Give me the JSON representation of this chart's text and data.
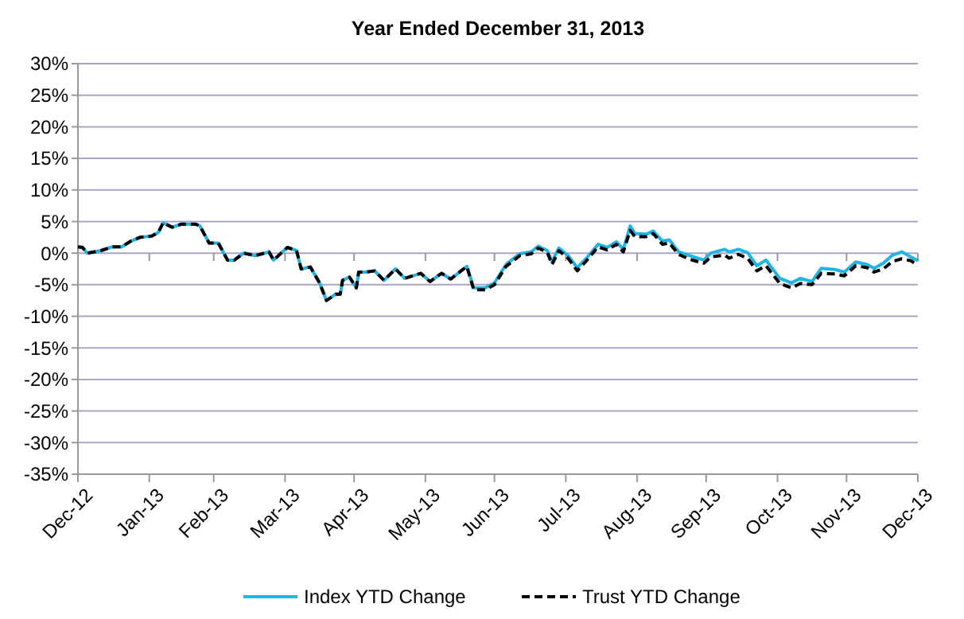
{
  "chart_data": {
    "type": "line",
    "title": "Year Ended December 31, 2013",
    "x": [
      "2012-12-31",
      "2013-01-02",
      "2013-01-04",
      "2013-01-10",
      "2013-01-15",
      "2013-01-19",
      "2013-01-23",
      "2013-01-27",
      "2013-02-01",
      "2013-02-04",
      "2013-02-06",
      "2013-02-10",
      "2013-02-14",
      "2013-02-20",
      "2013-02-22",
      "2013-02-26",
      "2013-03-02",
      "2013-03-06",
      "2013-03-09",
      "2013-03-13",
      "2013-03-18",
      "2013-03-24",
      "2013-03-26",
      "2013-04-01",
      "2013-04-05",
      "2013-04-07",
      "2013-04-11",
      "2013-04-15",
      "2013-04-18",
      "2013-04-22",
      "2013-04-24",
      "2013-04-25",
      "2013-04-28",
      "2013-05-01",
      "2013-05-02",
      "2013-05-05",
      "2013-05-09",
      "2013-05-13",
      "2013-05-18",
      "2013-05-22",
      "2013-05-29",
      "2013-06-02",
      "2013-06-07",
      "2013-06-11",
      "2013-06-18",
      "2013-06-21",
      "2013-06-26",
      "2013-06-30",
      "2013-07-05",
      "2013-07-11",
      "2013-07-16",
      "2013-07-19",
      "2013-07-23",
      "2013-07-25",
      "2013-07-28",
      "2013-08-01",
      "2013-08-05",
      "2013-08-09",
      "2013-08-14",
      "2013-08-18",
      "2013-08-22",
      "2013-08-25",
      "2013-08-28",
      "2013-08-30",
      "2013-09-04",
      "2013-09-07",
      "2013-09-11",
      "2013-09-14",
      "2013-09-18",
      "2013-09-23",
      "2013-09-29",
      "2013-10-02",
      "2013-10-08",
      "2013-10-10",
      "2013-10-14",
      "2013-10-18",
      "2013-10-22",
      "2013-10-26",
      "2013-11-01",
      "2013-11-06",
      "2013-11-10",
      "2013-11-15",
      "2013-11-19",
      "2013-11-25",
      "2013-11-29",
      "2013-12-04",
      "2013-12-09",
      "2013-12-12",
      "2013-12-16",
      "2013-12-20",
      "2013-12-24",
      "2013-12-28",
      "2013-12-31"
    ],
    "series": [
      {
        "name": "Index YTD Change",
        "color": "#1fb4e6",
        "line_style": "solid",
        "values": [
          1.0,
          0.9,
          0,
          0.4,
          1,
          1,
          1.9,
          2.5,
          2.7,
          3.3,
          4.8,
          4.1,
          4.6,
          4.6,
          4.3,
          1.6,
          1.6,
          -1.1,
          -1.1,
          0,
          -0.4,
          0.2,
          -1.1,
          0.9,
          0.4,
          -2.5,
          -2.2,
          -4.7,
          -7.5,
          -6.5,
          -6.5,
          -4.3,
          -3.8,
          -5.5,
          -3,
          -3,
          -2.8,
          -4.3,
          -2.5,
          -4,
          -3.2,
          -4.5,
          -3.2,
          -4.1,
          -2.1,
          -5.5,
          -5.5,
          -4.7,
          -1.8,
          -0.1,
          0.2,
          1.1,
          0.4,
          -1.3,
          0.8,
          -0.4,
          -2.3,
          -0.8,
          1.4,
          0.9,
          1.8,
          0.6,
          4.3,
          3.1,
          3.0,
          3.5,
          1.9,
          2.1,
          0.2,
          -0.4,
          -1.1,
          0,
          0.6,
          0.2,
          0.6,
          0.1,
          -2,
          -1.1,
          -4,
          -4.7,
          -4,
          -4.5,
          -2.4,
          -2.6,
          -3,
          -1.4,
          -1.8,
          -2.4,
          -1.6,
          -0.3,
          0.2,
          -0.6,
          -1.2
        ]
      },
      {
        "name": "Trust YTD Change",
        "color": "#000000",
        "line_style": "dashed",
        "values": [
          1.0,
          0.9,
          0,
          0.4,
          1,
          1,
          1.9,
          2.5,
          2.7,
          3.3,
          4.8,
          4.1,
          4.6,
          4.6,
          4.3,
          1.6,
          1.6,
          -1.1,
          -1.1,
          0,
          -0.4,
          0.2,
          -1.1,
          0.9,
          0.4,
          -2.5,
          -2.2,
          -4.7,
          -7.5,
          -6.5,
          -6.5,
          -4.3,
          -3.8,
          -5.5,
          -3,
          -3,
          -2.8,
          -4.3,
          -2.5,
          -4,
          -3.2,
          -4.5,
          -3.2,
          -4.1,
          -2.1,
          -5.8,
          -5.8,
          -5.0,
          -2.1,
          -0.4,
          -0.1,
          0.8,
          0.1,
          -1.8,
          0.4,
          -0.8,
          -2.8,
          -1.2,
          1.0,
          0.5,
          1.4,
          0.2,
          3.6,
          2.6,
          2.6,
          3.1,
          1.4,
          1.6,
          -0.2,
          -1.0,
          -1.6,
          -0.6,
          -0.3,
          -0.8,
          -0.2,
          -0.8,
          -2.8,
          -2.0,
          -4.8,
          -5.5,
          -4.8,
          -5.0,
          -3.2,
          -3.3,
          -3.6,
          -2.0,
          -2.3,
          -3.0,
          -2.5,
          -1.3,
          -0.9,
          -1.2,
          -2.0
        ]
      }
    ],
    "xlim": [
      "2012-12-31",
      "2013-12-31"
    ],
    "xticks": [
      {
        "value": "2012-12-31",
        "label": "Dec-12"
      },
      {
        "value": "2013-01-31",
        "label": "Jan-13"
      },
      {
        "value": "2013-02-28",
        "label": "Feb-13"
      },
      {
        "value": "2013-03-31",
        "label": "Mar-13"
      },
      {
        "value": "2013-04-30",
        "label": "Apr-13"
      },
      {
        "value": "2013-05-31",
        "label": "May-13"
      },
      {
        "value": "2013-06-30",
        "label": "Jun-13"
      },
      {
        "value": "2013-07-31",
        "label": "Jul-13"
      },
      {
        "value": "2013-08-31",
        "label": "Aug-13"
      },
      {
        "value": "2013-09-30",
        "label": "Sep-13"
      },
      {
        "value": "2013-10-31",
        "label": "Oct-13"
      },
      {
        "value": "2013-11-30",
        "label": "Nov-13"
      },
      {
        "value": "2013-12-31",
        "label": "Dec-13"
      }
    ],
    "ylim": [
      -35,
      30
    ],
    "yticks": [
      {
        "value": -35,
        "label": "-35%"
      },
      {
        "value": -30,
        "label": "-30%"
      },
      {
        "value": -25,
        "label": "-25%"
      },
      {
        "value": -20,
        "label": "-20%"
      },
      {
        "value": -15,
        "label": "-15%"
      },
      {
        "value": -10,
        "label": "-10%"
      },
      {
        "value": -5,
        "label": "-5%"
      },
      {
        "value": 0,
        "label": "0%"
      },
      {
        "value": 5,
        "label": "5%"
      },
      {
        "value": 10,
        "label": "10%"
      },
      {
        "value": 15,
        "label": "15%"
      },
      {
        "value": 20,
        "label": "20%"
      },
      {
        "value": 25,
        "label": "25%"
      },
      {
        "value": 30,
        "label": "30%"
      }
    ],
    "grid": "y",
    "legend": "bottom",
    "marker": "none"
  }
}
